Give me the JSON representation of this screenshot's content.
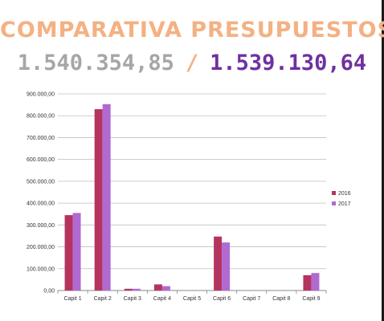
{
  "header": {
    "title": "COMPARATIVA  PRESUPUESTOS",
    "total_2016": "1.540.354,85",
    "separator": "/",
    "total_2017": "1.539.130,64"
  },
  "colors": {
    "title": "#f4b183",
    "total_2016": "#a6a6a6",
    "separator": "#f4b183",
    "total_2017": "#7030a0",
    "series_2016": "#b5345f",
    "series_2017": "#b06ad0",
    "grid": "#bfbfbf"
  },
  "chart_data": {
    "type": "bar",
    "categories": [
      "Capit 1",
      "Capit 2",
      "Capit 3",
      "Capit 4",
      "Capit 5",
      "Capit 6",
      "Capit 7",
      "Capit 8",
      "Capit 9"
    ],
    "series": [
      {
        "name": "2016",
        "values": [
          345000,
          830000,
          8000,
          28000,
          0,
          247000,
          0,
          0,
          70000
        ]
      },
      {
        "name": "2017",
        "values": [
          355000,
          853000,
          8000,
          20000,
          0,
          220000,
          0,
          0,
          80000
        ]
      }
    ],
    "yticks": [
      "0,00",
      "100.000,00",
      "200.000,00",
      "300.000,00",
      "400.000,00",
      "500.000,00",
      "600.000,00",
      "700.000,00",
      "800.000,00",
      "900.000,00"
    ],
    "ylim": [
      0,
      900000
    ],
    "title": "",
    "xlabel": "",
    "ylabel": "",
    "grid": true,
    "legend": "right"
  }
}
